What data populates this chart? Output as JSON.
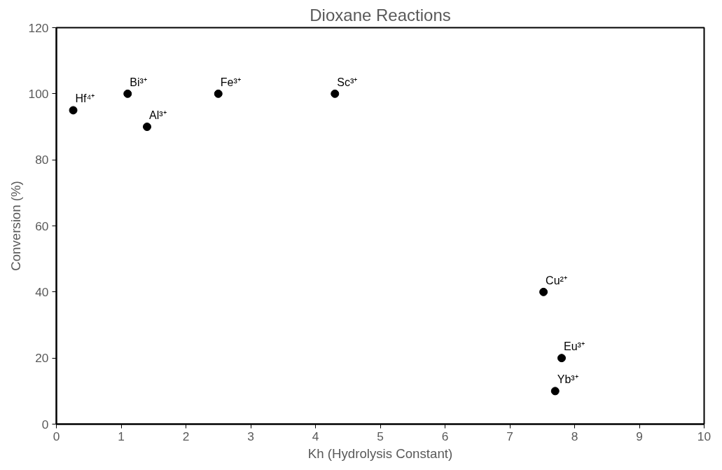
{
  "chart_data": {
    "type": "scatter",
    "title": "Dioxane Reactions",
    "xlabel": "Kh (Hydrolysis Constant)",
    "ylabel": "Conversion (%)",
    "x": [
      0.26,
      1.1,
      1.4,
      2.5,
      4.3,
      7.52,
      7.8,
      7.7
    ],
    "series": [
      {
        "color": "#000000",
        "values": [
          95,
          100,
          90,
          100,
          100,
          40,
          20,
          10
        ]
      }
    ],
    "annotations": [
      {
        "text": "Hf⁴⁺",
        "x": 0.26,
        "y": 95
      },
      {
        "text": "Bi³⁺",
        "x": 1.1,
        "y": 100
      },
      {
        "text": "Al³⁺",
        "x": 1.4,
        "y": 90
      },
      {
        "text": "Fe³⁺",
        "x": 2.5,
        "y": 100
      },
      {
        "text": "Sc³⁺",
        "x": 4.3,
        "y": 100
      },
      {
        "text": "Cu²⁺",
        "x": 7.52,
        "y": 40
      },
      {
        "text": "Eu³⁺",
        "x": 7.8,
        "y": 20
      },
      {
        "text": "Yb³⁺",
        "x": 7.7,
        "y": 10
      }
    ],
    "xlim": [
      0,
      10
    ],
    "xticks": [
      0,
      1,
      2,
      3,
      4,
      5,
      6,
      7,
      8,
      9,
      10
    ],
    "ylim": [
      0,
      120
    ],
    "yticks": [
      0,
      20,
      40,
      60,
      80,
      100,
      120
    ],
    "grid": false,
    "marker": "circle"
  }
}
